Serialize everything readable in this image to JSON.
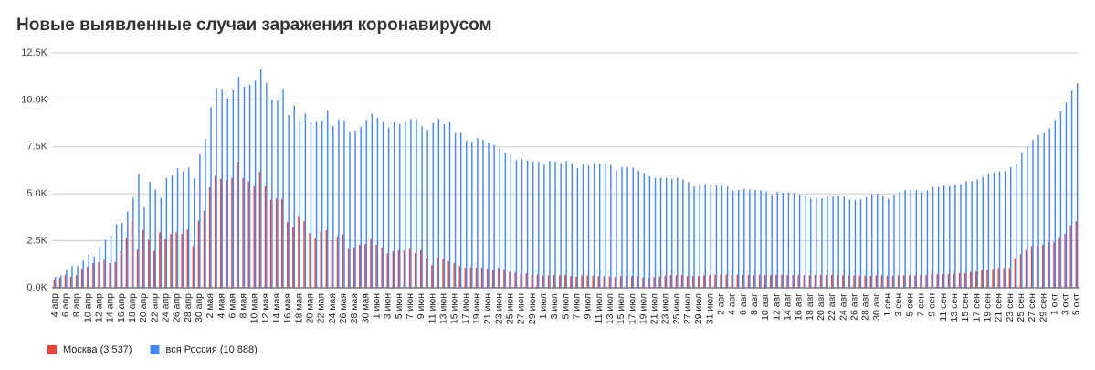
{
  "chart_data": {
    "type": "bar",
    "title": "Новые выявленные случаи заражения коронавирусом",
    "categories": [
      "4 апр",
      null,
      "6 апр",
      null,
      "8 апр",
      null,
      "10 апр",
      null,
      "12 апр",
      null,
      "14 апр",
      null,
      "16 апр",
      null,
      "18 апр",
      null,
      "20 апр",
      null,
      "22 апр",
      null,
      "24 апр",
      null,
      "26 апр",
      null,
      "28 апр",
      null,
      "30 апр",
      null,
      "2 мая",
      null,
      "4 мая",
      null,
      "6 мая",
      null,
      "8 мая",
      null,
      "10 мая",
      null,
      "12 мая",
      null,
      "14 мая",
      null,
      "16 мая",
      null,
      "18 мая",
      null,
      "20 мая",
      null,
      "22 мая",
      null,
      "24 мая",
      null,
      "26 мая",
      null,
      "28 мая",
      null,
      "30 мая",
      null,
      "1 июн",
      null,
      "3 июн",
      null,
      "5 июн",
      null,
      "7 июн",
      null,
      "9 июн",
      null,
      "11 июн",
      null,
      "13 июн",
      null,
      "15 июн",
      null,
      "17 июн",
      null,
      "19 июн",
      null,
      "21 июн",
      null,
      "23 июн",
      null,
      "25 июн",
      null,
      "27 июн",
      null,
      "29 июн",
      null,
      "1 июл",
      null,
      "3 июл",
      null,
      "5 июл",
      null,
      "7 июл",
      null,
      "9 июл",
      null,
      "11 июл",
      null,
      "13 июл",
      null,
      "15 июл",
      null,
      "17 июл",
      null,
      "19 июл",
      null,
      "21 июл",
      null,
      "23 июл",
      null,
      "25 июл",
      null,
      "27 июл",
      null,
      "29 июл",
      null,
      "31 июл",
      null,
      "2 авг",
      null,
      "4 авг",
      null,
      "6 авг",
      null,
      "8 авг",
      null,
      "10 авг",
      null,
      "12 авг",
      null,
      "14 авг",
      null,
      "16 авг",
      null,
      "18 авг",
      null,
      "20 авг",
      null,
      "22 авг",
      null,
      "24 авг",
      null,
      "26 авг",
      null,
      "28 авг",
      null,
      "30 авг",
      null,
      "1 сен",
      null,
      "3 сен",
      null,
      "5 сен",
      null,
      "7 сен",
      null,
      "9 сен",
      null,
      "11 сен",
      null,
      "13 сен",
      null,
      "15 сен",
      null,
      "17 сен",
      null,
      "19 сен",
      null,
      "21 сен",
      null,
      "23 сен",
      null,
      "25 сен",
      null,
      "27 сен",
      null,
      "29 сен",
      null,
      "1 окт",
      null,
      "3 окт",
      null,
      "5 окт"
    ],
    "series": [
      {
        "name": "Москва (3 537)",
        "color": "#e8453c",
        "values": [
          434,
          536,
          697,
          591,
          660,
          1030,
          1124,
          1306,
          1355,
          1489,
          1306,
          1370,
          1959,
          2649,
          3570,
          2026,
          3083,
          2548,
          1959,
          2948,
          2586,
          2861,
          2957,
          2871,
          3093,
          2220,
          3561,
          4100,
          5358,
          5948,
          5795,
          5714,
          5858,
          6703,
          5846,
          5667,
          5392,
          6169,
          5392,
          4703,
          4748,
          4712,
          3505,
          3238,
          3817,
          3545,
          2913,
          2642,
          2988,
          3074,
          2516,
          2731,
          2830,
          2054,
          2140,
          2297,
          2332,
          2595,
          2286,
          2140,
          1842,
          1951,
          1992,
          1987,
          2074,
          1854,
          1996,
          1572,
          1195,
          1624,
          1541,
          1421,
          1327,
          1154,
          1068,
          1097,
          1070,
          1080,
          1025,
          918,
          1060,
          969,
          855,
          819,
          755,
          785,
          694,
          710,
          659,
          660,
          683,
          664,
          686,
          613,
          589,
          672,
          650,
          636,
          610,
          617,
          604,
          575,
          621,
          637,
          628,
          580,
          558,
          549,
          564,
          598,
          650,
          677,
          656,
          689,
          630,
          624,
          632,
          676,
          677,
          695,
          699,
          695,
          670,
          700,
          683,
          681,
          683,
          686,
          673,
          680,
          689,
          691,
          683,
          687,
          690,
          674,
          667,
          685,
          689,
          686,
          687,
          677,
          668,
          655,
          659,
          645,
          648,
          655,
          660,
          655,
          647,
          641,
          656,
          664,
          660,
          667,
          700,
          693,
          718,
          726,
          726,
          722,
          752,
          784,
          789,
          842,
          868,
          921,
          948,
          1000,
          1056,
          1050,
          1044,
          1560,
          1792,
          2016,
          2217,
          2237,
          2300,
          2424,
          2424,
          2704,
          2884,
          3327,
          3537
        ]
      },
      {
        "name": "вся Россия (10 888)",
        "color": "#4285f4",
        "values": [
          582,
          658,
          954,
          1154,
          1175,
          1459,
          1786,
          1667,
          2186,
          2558,
          2774,
          3388,
          3448,
          4070,
          4785,
          6060,
          4268,
          5642,
          5236,
          4774,
          5849,
          5966,
          6361,
          6198,
          6411,
          5841,
          7099,
          7933,
          9623,
          10633,
          10581,
          10102,
          10559,
          11231,
          10699,
          10817,
          11012,
          11656,
          10899,
          10028,
          9974,
          10598,
          9200,
          9709,
          8926,
          9263,
          8764,
          8849,
          8894,
          9434,
          8599,
          8946,
          8915,
          8338,
          8371,
          8572,
          8952,
          9268,
          9035,
          8863,
          8536,
          8831,
          8726,
          8855,
          8984,
          8985,
          8595,
          8404,
          8779,
          8987,
          8706,
          8835,
          8246,
          8248,
          7843,
          7790,
          7972,
          7889,
          7728,
          7600,
          7425,
          7176,
          7113,
          6800,
          6852,
          6791,
          6719,
          6693,
          6556,
          6760,
          6718,
          6632,
          6736,
          6611,
          6368,
          6562,
          6509,
          6635,
          6611,
          6615,
          6537,
          6248,
          6422,
          6428,
          6406,
          6234,
          6109,
          5940,
          5842,
          5862,
          5848,
          5811,
          5871,
          5765,
          5635,
          5395,
          5475,
          5509,
          5482,
          5462,
          5427,
          5394,
          5159,
          5204,
          5267,
          5241,
          5212,
          5189,
          5118,
          4945,
          5102,
          5057,
          5065,
          5061,
          4969,
          4892,
          4748,
          4790,
          4767,
          4838,
          4870,
          4921,
          4852,
          4696,
          4676,
          4711,
          4829,
          4980,
          4993,
          4897,
          4729,
          4952,
          5110,
          5205,
          5195,
          5185,
          5099,
          5185,
          5363,
          5363,
          5449,
          5406,
          5488,
          5509,
          5670,
          5670,
          5762,
          5905,
          6065,
          6148,
          6196,
          6215,
          6431,
          6595,
          7212,
          7523,
          7867,
          8135,
          8232,
          8481,
          8945,
          9412,
          9859,
          10499,
          10888
        ]
      }
    ],
    "ylim": [
      0,
      12500
    ],
    "yticks": [
      {
        "value": 0,
        "label": "0.0K"
      },
      {
        "value": 2500,
        "label": "2.5K"
      },
      {
        "value": 5000,
        "label": "5.0K"
      },
      {
        "value": 7500,
        "label": "7.5K"
      },
      {
        "value": 10000,
        "label": "10.0K"
      },
      {
        "value": 12500,
        "label": "12.5K"
      }
    ],
    "grid": true,
    "legend": "bottom"
  }
}
